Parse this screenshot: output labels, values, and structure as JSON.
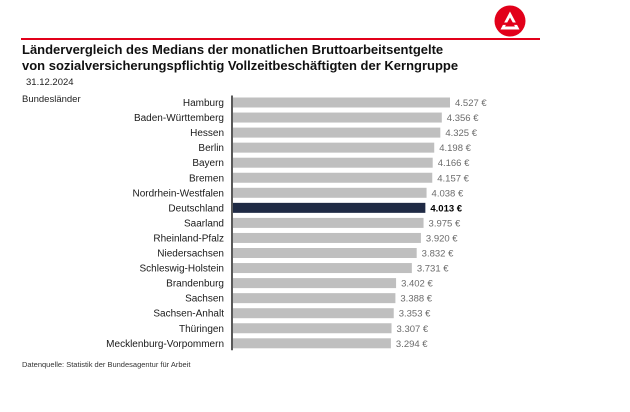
{
  "header": {
    "title_line1": "Ländervergleich des Medians der monatlichen Bruttoarbeitsentgelte",
    "title_line2": "von sozialversicherungspflichtig Vollzeitbeschäftigten der Kerngruppe",
    "date": "31.12.2024"
  },
  "logo": {
    "icon": "bundesagentur-logo-icon",
    "color": "#e2001a"
  },
  "footer": {
    "source": "Datenquelle: Statistik der Bundesagentur für Arbeit"
  },
  "chart_data": {
    "type": "bar",
    "orientation": "horizontal",
    "category_axis_title": "Bundesländer",
    "categories": [
      "Hamburg",
      "Baden-Württemberg",
      "Hessen",
      "Berlin",
      "Bayern",
      "Bremen",
      "Nordrhein-Westfalen",
      "Deutschland",
      "Saarland",
      "Rheinland-Pfalz",
      "Niedersachsen",
      "Schleswig-Holstein",
      "Brandenburg",
      "Sachsen",
      "Sachsen-Anhalt",
      "Thüringen",
      "Mecklenburg-Vorpommern"
    ],
    "values": [
      4527,
      4356,
      4325,
      4198,
      4166,
      4157,
      4038,
      4013,
      3975,
      3920,
      3832,
      3731,
      3402,
      3388,
      3353,
      3307,
      3294
    ],
    "value_labels": [
      "4.527 €",
      "4.356 €",
      "4.325 €",
      "4.198 €",
      "4.166 €",
      "4.157 €",
      "4.038 €",
      "4.013 €",
      "3.975 €",
      "3.920 €",
      "3.832 €",
      "3.731 €",
      "3.402 €",
      "3.388 €",
      "3.353 €",
      "3.307 €",
      "3.294 €"
    ],
    "highlight": "Deutschland",
    "xlim": [
      0,
      4527
    ],
    "colors": {
      "bar": "#bfbfbf",
      "highlight": "#1f2a44",
      "label": "#6b6b6b",
      "highlight_label": "#000000"
    },
    "grid": false,
    "legend": "none"
  }
}
